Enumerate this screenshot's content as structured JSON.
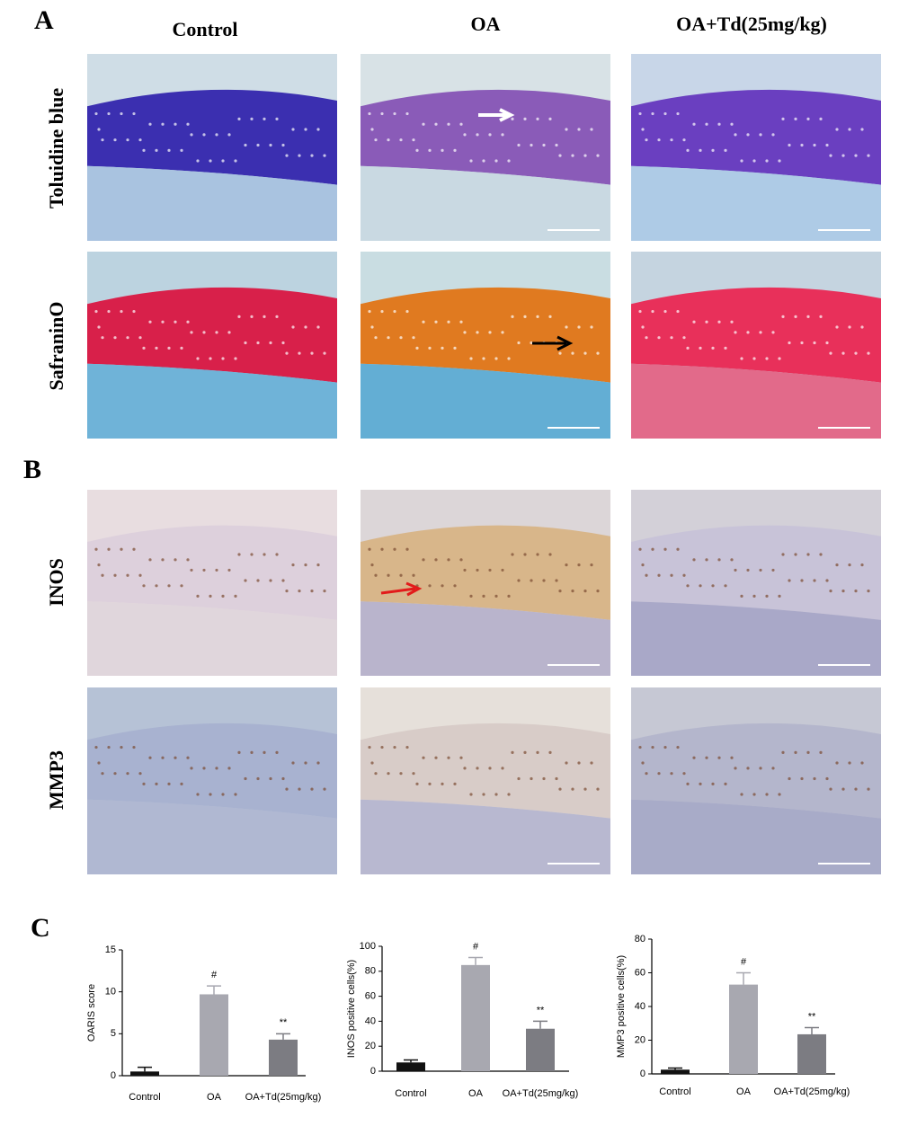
{
  "panel_labels": [
    "A",
    "B",
    "C"
  ],
  "column_headers": [
    "Control",
    "OA",
    "OA+Td(25mg/kg)"
  ],
  "row_labels": [
    "Toluidine blue",
    "SafraninO",
    "INOS",
    "MMP3"
  ],
  "chart_data": [
    {
      "type": "bar",
      "y_label": "OARIS score",
      "categories": [
        "Control",
        "OA",
        "OA+Td(25mg/kg)"
      ],
      "values": [
        0.5,
        9.7,
        4.3
      ],
      "errors": [
        0.5,
        1.0,
        0.7
      ],
      "colors": [
        "#111111",
        "#a8a8b0",
        "#7c7c82"
      ],
      "annotations": [
        null,
        "#",
        "**"
      ],
      "ylim": [
        0,
        15
      ],
      "yticks": [
        0,
        5,
        10,
        15
      ]
    },
    {
      "type": "bar",
      "y_label": "INOS positive cells(%)",
      "categories": [
        "Control",
        "OA",
        "OA+Td(25mg/kg)"
      ],
      "values": [
        7,
        85,
        34
      ],
      "errors": [
        2,
        6,
        6
      ],
      "colors": [
        "#111111",
        "#a8a8b0",
        "#7c7c82"
      ],
      "annotations": [
        null,
        "#",
        "**"
      ],
      "ylim": [
        0,
        100
      ],
      "yticks": [
        0,
        20,
        40,
        60,
        80,
        100
      ]
    },
    {
      "type": "bar",
      "y_label": "MMP3 positive cells(%)",
      "categories": [
        "Control",
        "OA",
        "OA+Td(25mg/kg)"
      ],
      "values": [
        2.5,
        53,
        23.5
      ],
      "errors": [
        1,
        7,
        4
      ],
      "colors": [
        "#111111",
        "#a8a8b0",
        "#7c7c82"
      ],
      "annotations": [
        null,
        "#",
        "**"
      ],
      "ylim": [
        0,
        80
      ],
      "yticks": [
        0,
        20,
        40,
        60,
        80
      ]
    }
  ]
}
